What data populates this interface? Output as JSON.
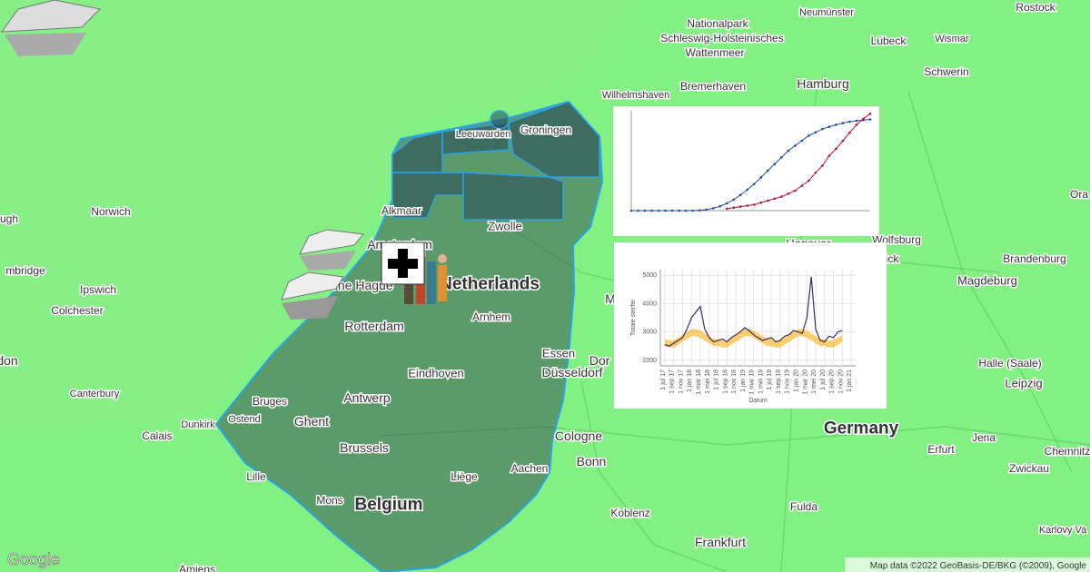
{
  "places": [
    "Rostock",
    "Neumünster",
    "Nationalpark",
    "Schleswig-Holsteinisches",
    "Wattenmeer",
    "Lübeck",
    "Wismar",
    "Hamburg",
    "Schwerin",
    "Bremerhaven",
    "Wilhelmshaven",
    "Leeuwarden",
    "Groningen",
    "Alkmaar",
    "Amsterdam",
    "Zwolle",
    "Netherlands",
    "The Hague",
    "Rotterdam",
    "Arnhem",
    "Hanover",
    "Wolfsburg",
    "ick",
    "Magdeburg",
    "Brandenburg",
    "Norwich",
    "ugh",
    "mbridge",
    "Ipswich",
    "Colchester",
    "don",
    "Canterbury",
    "Calais",
    "Dunkirk",
    "Ostend",
    "Bruges",
    "Ghent",
    "Antwerp",
    "Eindhoven",
    "Brussels",
    "Belgium",
    "Lille",
    "Mons",
    "Liège",
    "Aachen",
    "Essen",
    "Dor",
    "Düsseldorf",
    "M",
    "Cologne",
    "Bonn",
    "Koblenz",
    "Frankfurt",
    "Fulda",
    "Germany",
    "Erfurt",
    "Jena",
    "Halle (Saale)",
    "Leipzig",
    "Chemnitz",
    "Zwickau",
    "Karlovy Va",
    "Amiens",
    "Ora"
  ],
  "attribution": "Map data ©2022 GeoBasis-DE/BKG (©2009), Google",
  "logo": "Google",
  "charts": [
    {
      "type": "line",
      "xlim": [
        0,
        35
      ],
      "ylim": [
        0,
        30000
      ],
      "y2lim": [
        0,
        100
      ],
      "series": [
        {
          "color": "#1f4e9c",
          "values": [
            0,
            0,
            0,
            0,
            0,
            0,
            0,
            0,
            0,
            0,
            100,
            300,
            700,
            1300,
            2200,
            3300,
            4700,
            6300,
            8000,
            10000,
            12000,
            14000,
            16000,
            18000,
            19500,
            21000,
            22500,
            23500,
            24500,
            25200,
            25800,
            26300,
            26700,
            27000,
            27200,
            27400
          ]
        },
        {
          "color": "#b0103a",
          "axis": "y2",
          "values": [
            null,
            null,
            null,
            null,
            null,
            null,
            null,
            null,
            null,
            null,
            null,
            null,
            null,
            null,
            2,
            3,
            4,
            5,
            6,
            8,
            10,
            12,
            14,
            17,
            20,
            25,
            30,
            38,
            45,
            55,
            62,
            70,
            78,
            86,
            92,
            97
          ]
        }
      ]
    },
    {
      "type": "line",
      "y_label": "Totale sterfte",
      "x_label": "Datum",
      "xlim": [
        -1,
        43
      ],
      "ylim": [
        1800,
        5200
      ],
      "yticks": [
        2000,
        3000,
        4000,
        5000
      ],
      "xticks": [
        {
          "value": 0,
          "label": "1 jul 17"
        },
        {
          "value": 2,
          "label": "1 sep 17"
        },
        {
          "value": 4,
          "label": "1 nov 17"
        },
        {
          "value": 6,
          "label": "1 jan 18"
        },
        {
          "value": 8,
          "label": "1 mar 18"
        },
        {
          "value": 10,
          "label": "1 mei 18"
        },
        {
          "value": 12,
          "label": "1 jul 18"
        },
        {
          "value": 14,
          "label": "1 sep 18"
        },
        {
          "value": 16,
          "label": "1 nov 18"
        },
        {
          "value": 18,
          "label": "1 jan 19"
        },
        {
          "value": 20,
          "label": "1 mar 19"
        },
        {
          "value": 22,
          "label": "1 mei 19"
        },
        {
          "value": 24,
          "label": "1 jul 19"
        },
        {
          "value": 26,
          "label": "1 sep 19"
        },
        {
          "value": 28,
          "label": "1 nov 19"
        },
        {
          "value": 30,
          "label": "1 jan 20"
        },
        {
          "value": 32,
          "label": "1 mar 20"
        },
        {
          "value": 34,
          "label": "1 mei 20"
        },
        {
          "value": 36,
          "label": "1 jul 20"
        },
        {
          "value": 38,
          "label": "1 sep 20"
        },
        {
          "value": 40,
          "label": "1 nov 20"
        },
        {
          "value": 42,
          "label": "1 jan 21"
        }
      ],
      "grid": true,
      "band": {
        "color": "#f7c24a",
        "lower": [
          2500,
          2450,
          2450,
          2550,
          2650,
          2750,
          2850,
          2850,
          2800,
          2700,
          2600,
          2500,
          2500,
          2450,
          2450,
          2550,
          2650,
          2750,
          2850,
          2850,
          2800,
          2700,
          2600,
          2500,
          2500,
          2450,
          2450,
          2550,
          2650,
          2750,
          2850,
          2850,
          2800,
          2700,
          2600,
          2500,
          2500,
          2450,
          2450,
          2550,
          2650
        ],
        "upper": [
          2750,
          2700,
          2700,
          2800,
          2900,
          3000,
          3100,
          3100,
          3050,
          2950,
          2850,
          2750,
          2750,
          2700,
          2700,
          2800,
          2900,
          3000,
          3100,
          3100,
          3050,
          2950,
          2850,
          2750,
          2750,
          2700,
          2700,
          2800,
          2900,
          3000,
          3100,
          3100,
          3050,
          2950,
          2850,
          2750,
          2750,
          2700,
          2700,
          2800,
          2900
        ]
      },
      "series": [
        {
          "color": "#3d2a66",
          "values": [
            2550,
            2500,
            2600,
            2700,
            2800,
            3100,
            3500,
            3700,
            3900,
            3100,
            2800,
            2650,
            2700,
            2750,
            2650,
            2800,
            2900,
            3000,
            3150,
            3050,
            2900,
            2800,
            2700,
            2750,
            2800,
            2650,
            2700,
            2850,
            2900,
            3050,
            3000,
            2950,
            3500,
            4950,
            3100,
            2700,
            2650,
            2850,
            2800,
            3000,
            3050
          ]
        }
      ]
    }
  ]
}
